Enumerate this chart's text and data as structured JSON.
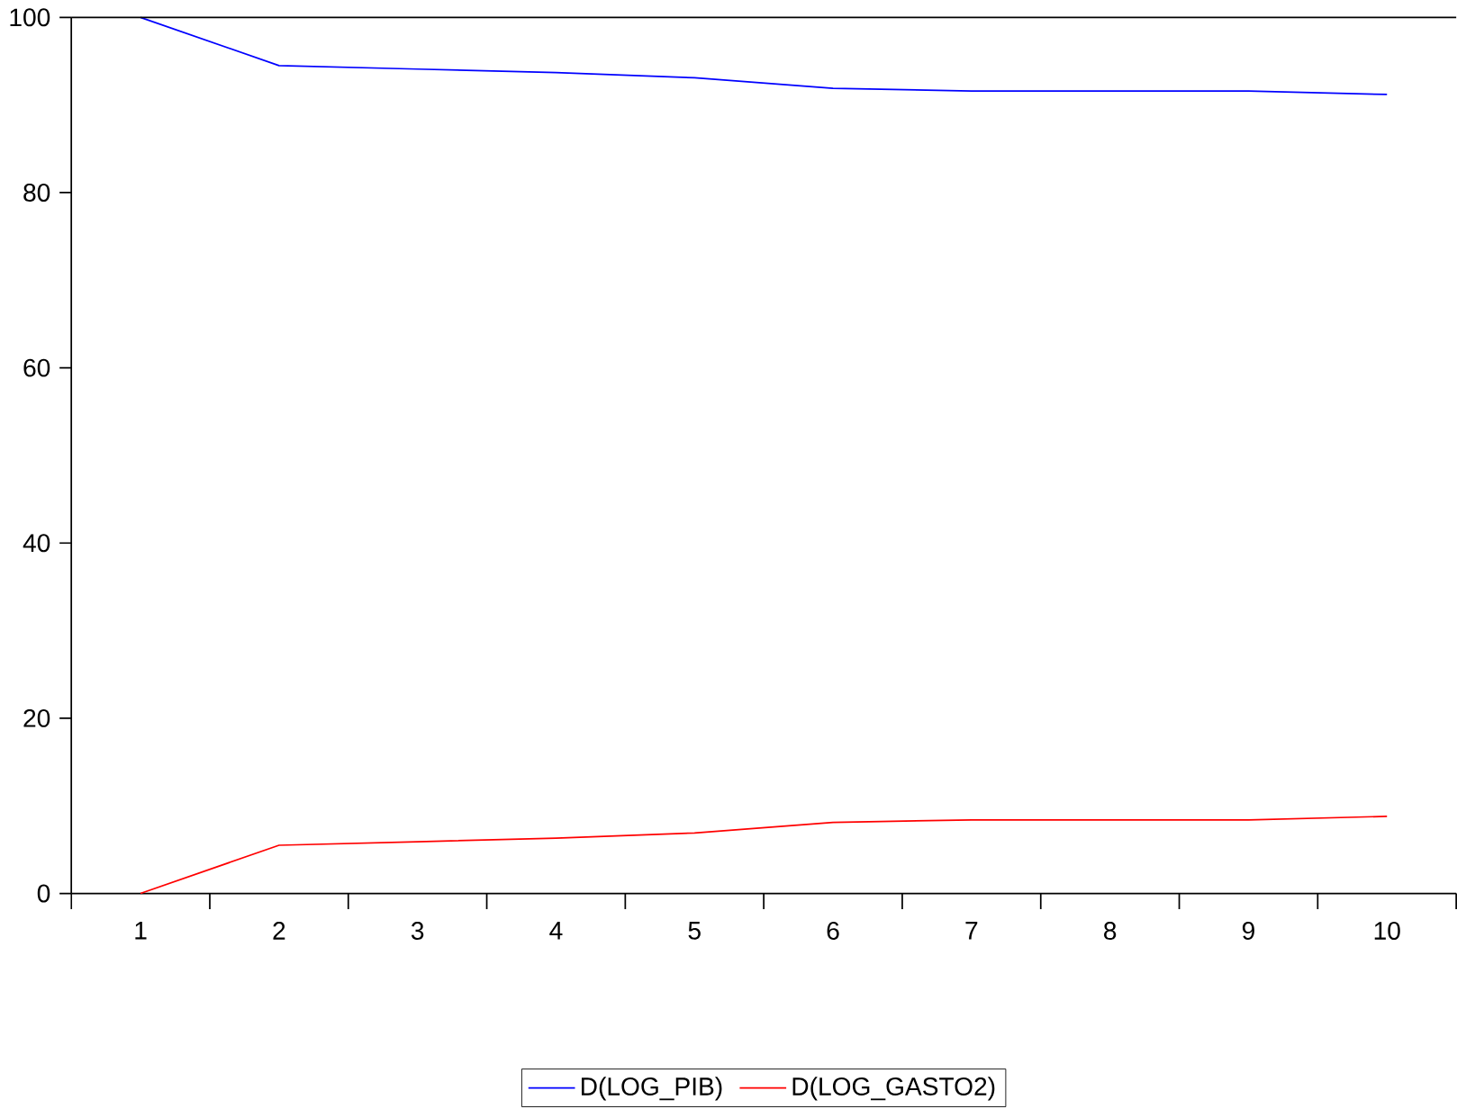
{
  "chart_data": {
    "type": "line",
    "categories": [
      "1",
      "2",
      "3",
      "4",
      "5",
      "6",
      "7",
      "8",
      "9",
      "10"
    ],
    "series": [
      {
        "name": "D(LOG_PIB)",
        "color": "#0000ff",
        "values": [
          100,
          94.5,
          94.1,
          93.7,
          93.1,
          91.9,
          91.6,
          91.6,
          91.6,
          91.2
        ]
      },
      {
        "name": "D(LOG_GASTO2)",
        "color": "#ff0000",
        "values": [
          0,
          5.5,
          5.9,
          6.3,
          6.9,
          8.1,
          8.4,
          8.4,
          8.4,
          8.8
        ]
      }
    ],
    "ylim": [
      0,
      100
    ],
    "yticks": [
      0,
      20,
      40,
      60,
      80,
      100
    ],
    "grid": false,
    "legend": "bottom"
  }
}
